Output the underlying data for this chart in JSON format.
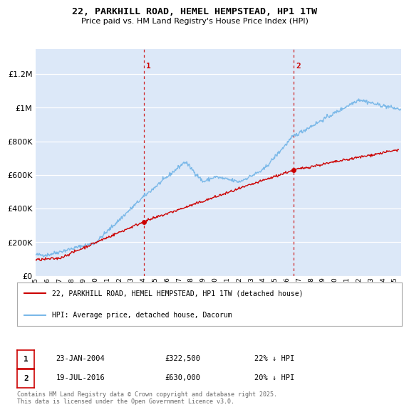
{
  "title_line1": "22, PARKHILL ROAD, HEMEL HEMPSTEAD, HP1 1TW",
  "title_line2": "Price paid vs. HM Land Registry's House Price Index (HPI)",
  "plot_bg_color": "#dce8f8",
  "ytick_values": [
    0,
    200000,
    400000,
    600000,
    800000,
    1000000,
    1200000
  ],
  "ylim": [
    0,
    1350000
  ],
  "xlim_start": 1995,
  "xlim_end": 2025.5,
  "xtick_years": [
    1995,
    1996,
    1997,
    1998,
    1999,
    2000,
    2001,
    2002,
    2003,
    2004,
    2005,
    2006,
    2007,
    2008,
    2009,
    2010,
    2011,
    2012,
    2013,
    2014,
    2015,
    2016,
    2017,
    2018,
    2019,
    2020,
    2021,
    2022,
    2023,
    2024,
    2025
  ],
  "hpi_color": "#7ab8e8",
  "price_color": "#cc0000",
  "vline_color": "#cc0000",
  "marker1_date": 2004.06,
  "marker1_label": "1",
  "marker1_price": 322500,
  "marker2_date": 2016.55,
  "marker2_label": "2",
  "marker2_price": 630000,
  "legend_line1": "22, PARKHILL ROAD, HEMEL HEMPSTEAD, HP1 1TW (detached house)",
  "legend_line2": "HPI: Average price, detached house, Dacorum",
  "info1_num": "1",
  "info1_date": "23-JAN-2004",
  "info1_price": "£322,500",
  "info1_hpi": "22% ↓ HPI",
  "info2_num": "2",
  "info2_date": "19-JUL-2016",
  "info2_price": "£630,000",
  "info2_hpi": "20% ↓ HPI",
  "footer": "Contains HM Land Registry data © Crown copyright and database right 2025.\nThis data is licensed under the Open Government Licence v3.0."
}
